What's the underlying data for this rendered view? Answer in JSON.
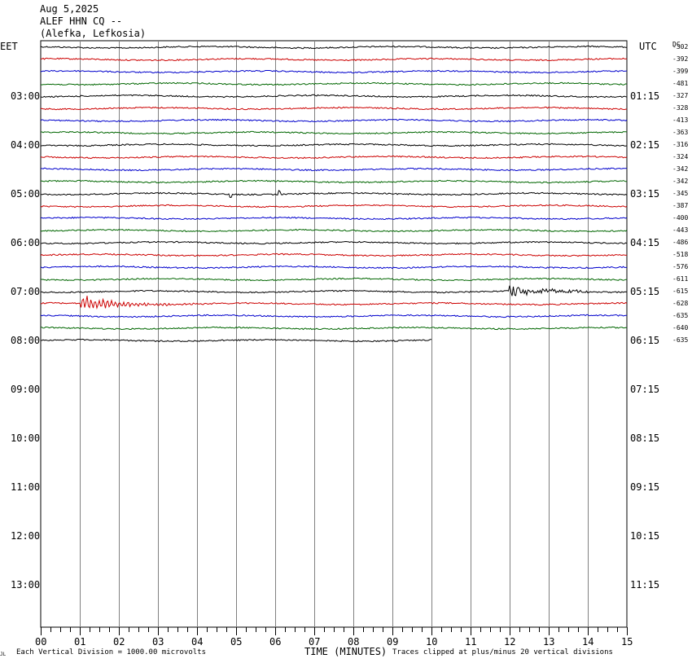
{
  "header": {
    "date": "Aug 5,2025",
    "station": "ALEF HHN CQ --",
    "location": "(Alefka, Lefkosia)"
  },
  "left_zone": "EET",
  "right_zone": "UTC",
  "dc_label": "DC",
  "footer": {
    "scale_note": "Each Vertical Division = 1000.00 microvolts",
    "xlabel": "TIME (MINUTES)",
    "clip_note": "Traces clipped at plus/minus 20 vertical divisions",
    "corner_mark": "JL"
  },
  "colors": {
    "black": "#000000",
    "red": "#cc0000",
    "blue": "#0000cc",
    "green": "#006600",
    "grid": "#808080"
  },
  "chart_data": {
    "type": "line",
    "title": "ALEF HHN CQ --",
    "xlabel": "TIME (MINUTES)",
    "xlim": [
      0,
      15
    ],
    "x_ticks": [
      "00",
      "01",
      "02",
      "03",
      "04",
      "05",
      "06",
      "07",
      "08",
      "09",
      "10",
      "11",
      "12",
      "13",
      "14",
      "15"
    ],
    "left_hour_labels": [
      "03:00",
      "04:00",
      "05:00",
      "06:00",
      "07:00",
      "08:00",
      "09:00",
      "10:00",
      "11:00",
      "12:00",
      "13:00"
    ],
    "right_hour_labels": [
      "01:15",
      "02:15",
      "03:15",
      "04:15",
      "05:15",
      "06:15",
      "07:15",
      "08:15",
      "09:15",
      "10:15",
      "11:15"
    ],
    "trace_color_cycle": [
      "black",
      "red",
      "blue",
      "green"
    ],
    "trace_dc_offsets": [
      "-302",
      "-392",
      "-399",
      "-481",
      "-327",
      "-328",
      "-413",
      "-363",
      "-316",
      "-324",
      "-342",
      "-342",
      "-345",
      "-387",
      "-400",
      "-443",
      "-486",
      "-518",
      "-576",
      "-611",
      "-615",
      "-628",
      "-635",
      "-640",
      "-635"
    ],
    "last_trace_end_minute": 10,
    "events": [
      {
        "trace": 12,
        "minute": 4.85,
        "kind": "spike"
      },
      {
        "trace": 12,
        "minute": 6.1,
        "kind": "spike"
      },
      {
        "trace": 20,
        "minute": 12.0,
        "end_minute": 14.0,
        "kind": "burst"
      },
      {
        "trace": 21,
        "minute": 1.0,
        "end_minute": 6.0,
        "kind": "earthquake"
      }
    ]
  }
}
